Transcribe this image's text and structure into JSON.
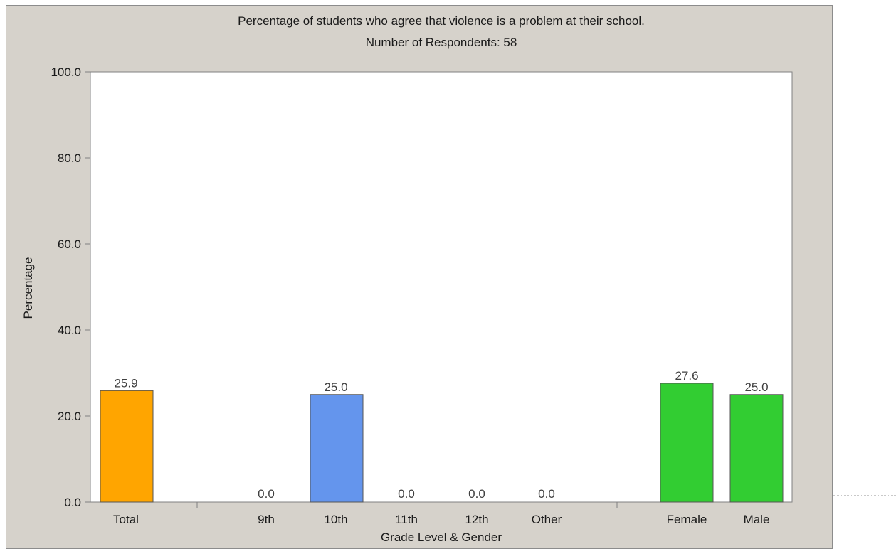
{
  "chart_data": {
    "type": "bar",
    "title": "Percentage of students who agree that violence is a problem at their school.",
    "subtitle": "Number of Respondents: 58",
    "xlabel": "Grade Level & Gender",
    "ylabel": "Percentage",
    "ylim": [
      0,
      100
    ],
    "yticks": [
      "0.0",
      "20.0",
      "40.0",
      "60.0",
      "80.0",
      "100.0"
    ],
    "grid": false,
    "categories": [
      "Total",
      "9th",
      "10th",
      "11th",
      "12th",
      "Other",
      "Female",
      "Male"
    ],
    "values": [
      25.9,
      0.0,
      25.0,
      0.0,
      0.0,
      0.0,
      27.6,
      25.0
    ],
    "value_labels": [
      "25.9",
      "0.0",
      "25.0",
      "0.0",
      "0.0",
      "0.0",
      "27.6",
      "25.0"
    ],
    "groups": [
      "total",
      "grade",
      "grade",
      "grade",
      "grade",
      "grade",
      "gender",
      "gender"
    ],
    "colors": {
      "total": "#ffa500",
      "grade": "#6495ed",
      "gender": "#32cd32",
      "bar_outline": "#555555",
      "frame": "#d6d2cb",
      "plot_area": "#ffffff"
    }
  }
}
